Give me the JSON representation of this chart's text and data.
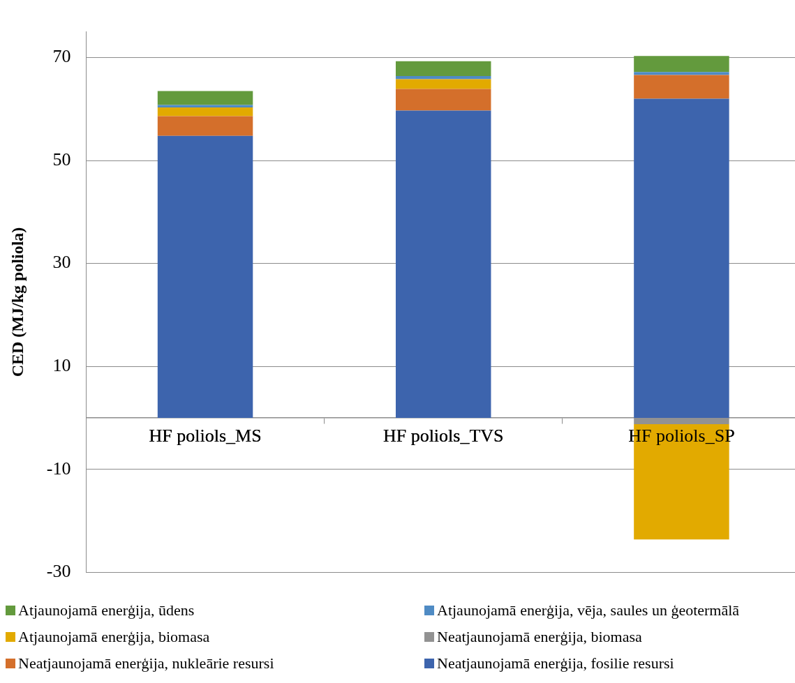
{
  "chart_data": {
    "type": "bar",
    "stacked": true,
    "ylabel": "CED (MJ/kg poliola)",
    "categories": [
      "HF poliols_MS",
      "HF poliols_TVS",
      "HF poliols_SP"
    ],
    "series": [
      {
        "name": "Neatjaunojamā enerģija, fosilie resursi",
        "color": "#3d64ad",
        "values": [
          54.8,
          59.7,
          62.0
        ]
      },
      {
        "name": "Neatjaunojamā enerģija, nukleārie resursi",
        "color": "#d46f2b",
        "values": [
          3.8,
          4.2,
          4.6
        ]
      },
      {
        "name": "Neatjaunojamā enerģija, biomasa",
        "color": "#929292",
        "values": [
          0,
          0,
          -1.2
        ]
      },
      {
        "name": "Atjaunojamā enerģija, biomasa",
        "color": "#e2aa00",
        "values": [
          1.7,
          1.9,
          -22.4
        ]
      },
      {
        "name": "Atjaunojamā enerģija, vēja, saules un ģeotermālā",
        "color": "#4f8bc4",
        "values": [
          0.5,
          0.6,
          0.6
        ]
      },
      {
        "name": "Atjaunojamā enerģija, ūdens",
        "color": "#639a3d",
        "values": [
          2.7,
          2.9,
          3.1
        ]
      }
    ],
    "ylim": [
      -30,
      75
    ],
    "yticks": [
      -30,
      -10,
      10,
      30,
      50,
      70
    ],
    "grid": "y",
    "legend": "bottom"
  }
}
